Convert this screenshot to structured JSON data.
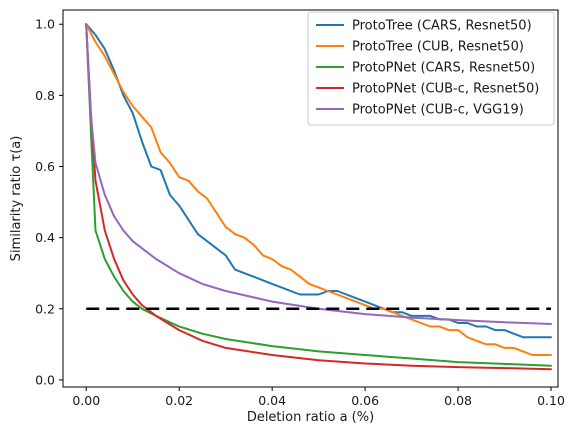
{
  "chart_data": {
    "type": "line",
    "title": "",
    "xlabel": "Deletion ratio a (%)",
    "ylabel": "Similarity ratio τ(a)",
    "xlim": [
      -0.005,
      0.1015
    ],
    "ylim": [
      -0.02,
      1.04
    ],
    "xticks": [
      {
        "value": 0.0,
        "label": "0.00"
      },
      {
        "value": 0.02,
        "label": "0.02"
      },
      {
        "value": 0.04,
        "label": "0.04"
      },
      {
        "value": 0.06,
        "label": "0.06"
      },
      {
        "value": 0.08,
        "label": "0.08"
      },
      {
        "value": 0.1,
        "label": "0.10"
      }
    ],
    "yticks": [
      {
        "value": 0.0,
        "label": "0.0"
      },
      {
        "value": 0.2,
        "label": "0.2"
      },
      {
        "value": 0.4,
        "label": "0.4"
      },
      {
        "value": 0.6,
        "label": "0.6"
      },
      {
        "value": 0.8,
        "label": "0.8"
      },
      {
        "value": 1.0,
        "label": "1.0"
      }
    ],
    "grid": false,
    "legend_position": "top-right",
    "reference_line": {
      "y": 0.2,
      "style": "dashed",
      "color": "#000000"
    },
    "series": [
      {
        "name": "ProtoTree (CARS, Resnet50)",
        "color": "#1f77b4",
        "x": [
          0,
          0.002,
          0.004,
          0.006,
          0.008,
          0.01,
          0.012,
          0.014,
          0.016,
          0.018,
          0.02,
          0.022,
          0.024,
          0.026,
          0.028,
          0.03,
          0.032,
          0.034,
          0.036,
          0.038,
          0.04,
          0.042,
          0.044,
          0.046,
          0.048,
          0.05,
          0.052,
          0.054,
          0.056,
          0.058,
          0.06,
          0.062,
          0.064,
          0.066,
          0.068,
          0.07,
          0.072,
          0.074,
          0.076,
          0.078,
          0.08,
          0.082,
          0.084,
          0.086,
          0.088,
          0.09,
          0.092,
          0.094,
          0.096,
          0.098,
          0.1
        ],
        "y": [
          1.0,
          0.97,
          0.93,
          0.87,
          0.8,
          0.75,
          0.67,
          0.6,
          0.59,
          0.52,
          0.49,
          0.45,
          0.41,
          0.39,
          0.37,
          0.35,
          0.31,
          0.3,
          0.29,
          0.28,
          0.27,
          0.26,
          0.25,
          0.24,
          0.24,
          0.24,
          0.25,
          0.25,
          0.24,
          0.23,
          0.22,
          0.21,
          0.2,
          0.19,
          0.19,
          0.18,
          0.18,
          0.18,
          0.17,
          0.17,
          0.16,
          0.16,
          0.15,
          0.15,
          0.14,
          0.14,
          0.13,
          0.12,
          0.12,
          0.12,
          0.12
        ]
      },
      {
        "name": "ProtoTree (CUB, Resnet50)",
        "color": "#ff7f0e",
        "x": [
          0,
          0.002,
          0.004,
          0.006,
          0.008,
          0.01,
          0.012,
          0.014,
          0.016,
          0.018,
          0.02,
          0.022,
          0.024,
          0.026,
          0.028,
          0.03,
          0.032,
          0.034,
          0.036,
          0.038,
          0.04,
          0.042,
          0.044,
          0.046,
          0.048,
          0.05,
          0.052,
          0.054,
          0.056,
          0.058,
          0.06,
          0.062,
          0.064,
          0.066,
          0.068,
          0.07,
          0.072,
          0.074,
          0.076,
          0.078,
          0.08,
          0.082,
          0.084,
          0.086,
          0.088,
          0.09,
          0.092,
          0.094,
          0.096,
          0.098,
          0.1
        ],
        "y": [
          1.0,
          0.95,
          0.91,
          0.86,
          0.81,
          0.77,
          0.74,
          0.71,
          0.64,
          0.61,
          0.57,
          0.56,
          0.53,
          0.51,
          0.47,
          0.43,
          0.41,
          0.4,
          0.38,
          0.35,
          0.34,
          0.32,
          0.31,
          0.29,
          0.27,
          0.26,
          0.25,
          0.24,
          0.23,
          0.22,
          0.21,
          0.2,
          0.2,
          0.19,
          0.18,
          0.17,
          0.16,
          0.15,
          0.15,
          0.14,
          0.14,
          0.12,
          0.11,
          0.1,
          0.1,
          0.09,
          0.09,
          0.08,
          0.07,
          0.07,
          0.07
        ]
      },
      {
        "name": "ProtoPNet (CARS, Resnet50)",
        "color": "#2ca02c",
        "x": [
          0,
          0.001,
          0.002,
          0.004,
          0.006,
          0.008,
          0.01,
          0.012,
          0.015,
          0.02,
          0.025,
          0.03,
          0.04,
          0.05,
          0.06,
          0.07,
          0.08,
          0.09,
          0.1
        ],
        "y": [
          1.0,
          0.7,
          0.42,
          0.34,
          0.29,
          0.25,
          0.22,
          0.2,
          0.18,
          0.15,
          0.13,
          0.115,
          0.095,
          0.08,
          0.07,
          0.06,
          0.05,
          0.045,
          0.04
        ]
      },
      {
        "name": "ProtoPNet (CUB-c, Resnet50)",
        "color": "#d62728",
        "x": [
          0,
          0.001,
          0.002,
          0.004,
          0.006,
          0.008,
          0.01,
          0.012,
          0.015,
          0.02,
          0.025,
          0.03,
          0.04,
          0.05,
          0.06,
          0.07,
          0.08,
          0.09,
          0.1
        ],
        "y": [
          1.0,
          0.75,
          0.56,
          0.42,
          0.34,
          0.28,
          0.24,
          0.21,
          0.18,
          0.14,
          0.11,
          0.09,
          0.07,
          0.055,
          0.046,
          0.04,
          0.036,
          0.033,
          0.03
        ]
      },
      {
        "name": "ProtoPNet (CUB-c, VGG19)",
        "color": "#9467bd",
        "x": [
          0,
          0.001,
          0.002,
          0.004,
          0.006,
          0.008,
          0.01,
          0.012,
          0.015,
          0.02,
          0.025,
          0.03,
          0.04,
          0.05,
          0.06,
          0.07,
          0.08,
          0.09,
          0.1
        ],
        "y": [
          1.0,
          0.74,
          0.61,
          0.52,
          0.46,
          0.42,
          0.39,
          0.37,
          0.34,
          0.3,
          0.27,
          0.25,
          0.22,
          0.2,
          0.185,
          0.175,
          0.168,
          0.162,
          0.157
        ]
      }
    ]
  }
}
